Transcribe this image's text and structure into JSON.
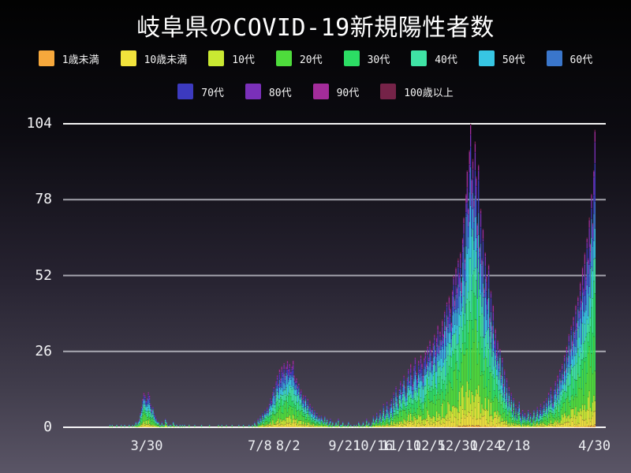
{
  "title": "岐阜県のCOVID-19新規陽性者数",
  "legend": {
    "rows": [
      [
        0,
        1,
        2,
        3,
        4,
        5,
        6,
        7
      ],
      [
        8,
        9,
        10,
        11
      ]
    ]
  },
  "colors": {
    "background_top": "#020202",
    "background_bottom": "#5a5566",
    "grid_line": "#d6d6de",
    "axis_line": "#ffffff",
    "text": "#ffffff"
  },
  "chart_data": {
    "type": "bar",
    "stacked": true,
    "title": "岐阜県のCOVID-19新規陽性者数",
    "xlabel": "",
    "ylabel": "",
    "ylim": [
      0,
      104
    ],
    "y_ticks": [
      0,
      26,
      52,
      78,
      104
    ],
    "grid": "horizontal",
    "legend_position": "top",
    "x_start_date": "2020-01-16",
    "x_end_date": "2021-04-30",
    "x_ticks": [
      {
        "label": "3/30",
        "day": 74
      },
      {
        "label": "7/8",
        "day": 174
      },
      {
        "label": "8/2",
        "day": 199
      },
      {
        "label": "9/21",
        "day": 249
      },
      {
        "label": "10/16",
        "day": 274
      },
      {
        "label": "11/10",
        "day": 299
      },
      {
        "label": "12/5",
        "day": 324
      },
      {
        "label": "12/30",
        "day": 349
      },
      {
        "label": "1/24",
        "day": 374
      },
      {
        "label": "2/18",
        "day": 399
      },
      {
        "label": "4/30",
        "day": 470
      }
    ],
    "age_groups": [
      {
        "name": "1歳未満",
        "color": "#f6a83c",
        "share": 0.006
      },
      {
        "name": "10歳未満",
        "color": "#f2e33c",
        "share": 0.055
      },
      {
        "name": "10代",
        "color": "#c9e832",
        "share": 0.085
      },
      {
        "name": "20代",
        "color": "#4edc3c",
        "share": 0.185
      },
      {
        "name": "30代",
        "color": "#2cdd64",
        "share": 0.15
      },
      {
        "name": "40代",
        "color": "#3fe3a5",
        "share": 0.14
      },
      {
        "name": "50代",
        "color": "#37c6e3",
        "share": 0.125
      },
      {
        "name": "60代",
        "color": "#3a76cb",
        "share": 0.095
      },
      {
        "name": "70代",
        "color": "#3c3abf",
        "share": 0.07
      },
      {
        "name": "80代",
        "color": "#7a30b9",
        "share": 0.05
      },
      {
        "name": "90代",
        "color": "#a32c9a",
        "share": 0.032
      },
      {
        "name": "100歳以上",
        "color": "#752348",
        "share": 0.007
      }
    ],
    "daily_totals": [
      0,
      0,
      0,
      0,
      0,
      0,
      0,
      0,
      0,
      0,
      0,
      0,
      0,
      0,
      0,
      0,
      0,
      0,
      0,
      0,
      0,
      0,
      0,
      0,
      0,
      0,
      0,
      0,
      0,
      0,
      0,
      0,
      0,
      0,
      0,
      0,
      0,
      0,
      0,
      0,
      0,
      1,
      0,
      1,
      0,
      0,
      0,
      1,
      0,
      0,
      0,
      1,
      0,
      0,
      1,
      0,
      0,
      0,
      1,
      0,
      0,
      1,
      0,
      1,
      2,
      1,
      2,
      3,
      5,
      7,
      10,
      12,
      11,
      9,
      10,
      12,
      11,
      8,
      6,
      7,
      5,
      4,
      3,
      2,
      2,
      1,
      1,
      2,
      1,
      1,
      3,
      2,
      1,
      0,
      1,
      1,
      0,
      2,
      1,
      0,
      1,
      0,
      0,
      1,
      0,
      1,
      0,
      1,
      0,
      0,
      0,
      1,
      0,
      0,
      0,
      0,
      1,
      0,
      0,
      0,
      0,
      0,
      1,
      0,
      0,
      0,
      0,
      0,
      0,
      1,
      0,
      0,
      0,
      0,
      0,
      0,
      0,
      1,
      0,
      0,
      1,
      0,
      0,
      0,
      1,
      0,
      0,
      0,
      0,
      1,
      0,
      0,
      0,
      0,
      0,
      1,
      0,
      0,
      0,
      1,
      0,
      0,
      0,
      0,
      1,
      0,
      0,
      1,
      0,
      2,
      1,
      0,
      3,
      2,
      4,
      3,
      5,
      4,
      6,
      5,
      7,
      6,
      8,
      10,
      9,
      12,
      14,
      11,
      16,
      18,
      15,
      20,
      17,
      21,
      19,
      22,
      18,
      21,
      23,
      20,
      22,
      19,
      21,
      23,
      18,
      16,
      17,
      14,
      15,
      12,
      13,
      10,
      11,
      9,
      11,
      8,
      10,
      7,
      8,
      6,
      7,
      5,
      6,
      4,
      5,
      3,
      4,
      3,
      4,
      3,
      2,
      4,
      2,
      3,
      1,
      2,
      3,
      1,
      2,
      0,
      1,
      2,
      1,
      3,
      0,
      1,
      1,
      2,
      0,
      1,
      0,
      1,
      2,
      0,
      1,
      0,
      0,
      1,
      0,
      1,
      0,
      2,
      1,
      0,
      1,
      2,
      0,
      1,
      3,
      1,
      2,
      0,
      1,
      2,
      4,
      2,
      3,
      5,
      2,
      4,
      6,
      3,
      5,
      8,
      4,
      6,
      9,
      7,
      5,
      8,
      10,
      7,
      12,
      9,
      14,
      11,
      8,
      13,
      16,
      12,
      15,
      18,
      14,
      11,
      17,
      20,
      16,
      22,
      18,
      15,
      21,
      24,
      19,
      17,
      23,
      20,
      25,
      22,
      18,
      24,
      26,
      22,
      28,
      24,
      30,
      27,
      23,
      29,
      32,
      26,
      31,
      35,
      28,
      33,
      30,
      37,
      32,
      40,
      35,
      43,
      38,
      45,
      41,
      36,
      47,
      52,
      44,
      55,
      48,
      58,
      53,
      60,
      50,
      65,
      72,
      58,
      80,
      88,
      75,
      95,
      104,
      85,
      92,
      78,
      98,
      86,
      70,
      90,
      62,
      75,
      58,
      68,
      48,
      60,
      52,
      44,
      56,
      38,
      47,
      35,
      42,
      30,
      34,
      26,
      30,
      22,
      27,
      18,
      24,
      15,
      20,
      12,
      17,
      10,
      14,
      8,
      12,
      6,
      10,
      5,
      8,
      4,
      7,
      9,
      5,
      3,
      6,
      4,
      5,
      3,
      4,
      6,
      3,
      5,
      2,
      4,
      6,
      3,
      5,
      7,
      4,
      6,
      8,
      5,
      7,
      9,
      6,
      10,
      8,
      12,
      9,
      14,
      11,
      8,
      13,
      16,
      12,
      18,
      14,
      20,
      16,
      22,
      18,
      25,
      20,
      28,
      24,
      32,
      27,
      35,
      30,
      38,
      33,
      42,
      36,
      45,
      40,
      50,
      44,
      55,
      48,
      60,
      52,
      65,
      58,
      72,
      63,
      80,
      70,
      88,
      102
    ]
  }
}
